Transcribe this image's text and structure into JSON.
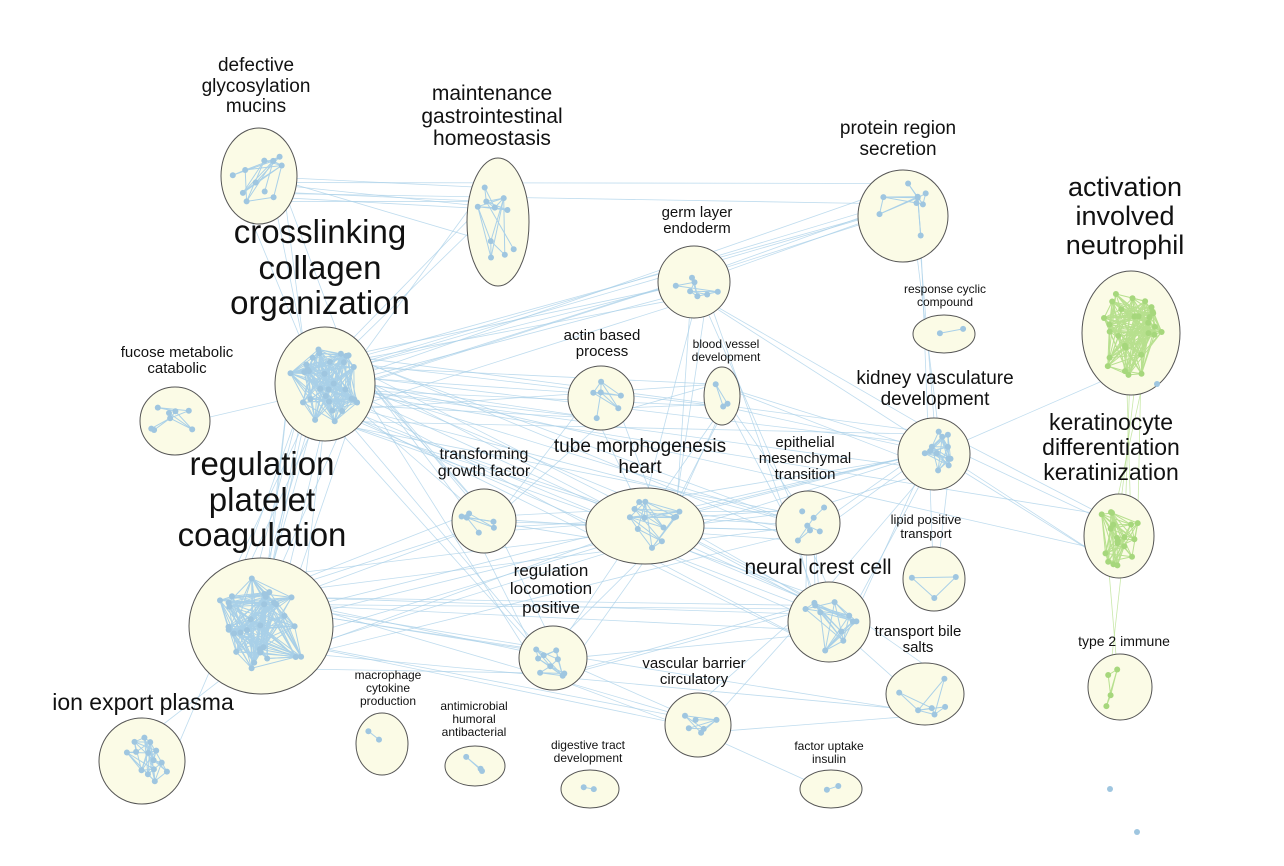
{
  "colors": {
    "blue_node": "#9fc6e0",
    "blue_edge": "#a9d0e8",
    "green_node": "#a6d77c",
    "green_edge": "#b7e08e",
    "cluster_fill": "#fbfbe6",
    "cluster_stroke": "#555555"
  },
  "clusters": [
    {
      "id": "crosslinking",
      "lines": [
        "crosslinking",
        "collagen",
        "organization"
      ],
      "color": "blue"
    },
    {
      "id": "platelet",
      "lines": [
        "regulation",
        "platelet",
        "coagulation"
      ],
      "color": "blue"
    },
    {
      "id": "mucins",
      "lines": [
        "defective",
        "glycosylation",
        "mucins"
      ],
      "color": "blue"
    },
    {
      "id": "gastro",
      "lines": [
        "maintenance",
        "gastrointestinal",
        "homeostasis"
      ],
      "color": "blue"
    },
    {
      "id": "fucose",
      "lines": [
        "fucose metabolic",
        "catabolic"
      ],
      "color": "blue"
    },
    {
      "id": "ion",
      "lines": [
        "ion export plasma"
      ],
      "color": "blue"
    },
    {
      "id": "germ",
      "lines": [
        "germ layer",
        "endoderm"
      ],
      "color": "blue"
    },
    {
      "id": "actin",
      "lines": [
        "actin based",
        "process"
      ],
      "color": "blue"
    },
    {
      "id": "bloodvessel",
      "lines": [
        "blood vessel",
        "development"
      ],
      "color": "blue"
    },
    {
      "id": "protein",
      "lines": [
        "protein region",
        "secretion"
      ],
      "color": "blue"
    },
    {
      "id": "cyclic",
      "lines": [
        "response cyclic",
        "compound"
      ],
      "color": "blue"
    },
    {
      "id": "kidney",
      "lines": [
        "kidney vasculature",
        "development"
      ],
      "color": "blue"
    },
    {
      "id": "tgf",
      "lines": [
        "transforming",
        "growth factor"
      ],
      "color": "blue"
    },
    {
      "id": "tube",
      "lines": [
        "tube morphogenesis",
        "heart"
      ],
      "color": "blue"
    },
    {
      "id": "emt",
      "lines": [
        "epithelial",
        "mesenchymal",
        "transition"
      ],
      "color": "blue"
    },
    {
      "id": "lipid",
      "lines": [
        "lipid positive",
        "transport"
      ],
      "color": "blue"
    },
    {
      "id": "neural",
      "lines": [
        "neural crest cell"
      ],
      "color": "blue"
    },
    {
      "id": "locomotion",
      "lines": [
        "regulation",
        "locomotion",
        "positive"
      ],
      "color": "blue"
    },
    {
      "id": "bile",
      "lines": [
        "transport bile",
        "salts"
      ],
      "color": "blue"
    },
    {
      "id": "vascular",
      "lines": [
        "vascular barrier",
        "circulatory"
      ],
      "color": "blue"
    },
    {
      "id": "macrophage",
      "lines": [
        "macrophage",
        "cytokine",
        "production"
      ],
      "color": "blue"
    },
    {
      "id": "antimicrobial",
      "lines": [
        "antimicrobial",
        "humoral",
        "antibacterial"
      ],
      "color": "blue"
    },
    {
      "id": "digestive",
      "lines": [
        "digestive tract",
        "development"
      ],
      "color": "blue"
    },
    {
      "id": "insulin",
      "lines": [
        "factor uptake",
        "insulin"
      ],
      "color": "blue"
    },
    {
      "id": "neutrophil",
      "lines": [
        "activation",
        "involved",
        "neutrophil"
      ],
      "color": "green"
    },
    {
      "id": "keratinocyte",
      "lines": [
        "keratinocyte",
        "differentiation",
        "keratinization"
      ],
      "color": "green"
    },
    {
      "id": "immune",
      "lines": [
        "type 2 immune"
      ],
      "color": "green"
    }
  ],
  "links": [
    [
      "crosslinking",
      "platelet",
      14
    ],
    [
      "crosslinking",
      "mucins",
      4
    ],
    [
      "crosslinking",
      "gastro",
      3
    ],
    [
      "crosslinking",
      "germ",
      6
    ],
    [
      "crosslinking",
      "protein",
      5
    ],
    [
      "crosslinking",
      "actin",
      4
    ],
    [
      "crosslinking",
      "bloodvessel",
      4
    ],
    [
      "crosslinking",
      "kidney",
      4
    ],
    [
      "crosslinking",
      "tgf",
      5
    ],
    [
      "crosslinking",
      "tube",
      5
    ],
    [
      "crosslinking",
      "emt",
      5
    ],
    [
      "crosslinking",
      "neural",
      6
    ],
    [
      "crosslinking",
      "fucose",
      1
    ],
    [
      "crosslinking",
      "locomotion",
      3
    ],
    [
      "crosslinking",
      "keratinocyte",
      2
    ],
    [
      "platelet",
      "tgf",
      3
    ],
    [
      "platelet",
      "locomotion",
      4
    ],
    [
      "platelet",
      "neural",
      4
    ],
    [
      "platelet",
      "vascular",
      3
    ],
    [
      "platelet",
      "emt",
      3
    ],
    [
      "platelet",
      "tube",
      3
    ],
    [
      "platelet",
      "bile",
      2
    ],
    [
      "platelet",
      "ion",
      2
    ],
    [
      "platelet",
      "kidney",
      2
    ],
    [
      "mucins",
      "gastro",
      6
    ],
    [
      "mucins",
      "protein",
      2
    ],
    [
      "germ",
      "tube",
      3
    ],
    [
      "germ",
      "neural",
      2
    ],
    [
      "germ",
      "protein",
      2
    ],
    [
      "germ",
      "kidney",
      2
    ],
    [
      "tube",
      "emt",
      4
    ],
    [
      "tube",
      "neural",
      4
    ],
    [
      "tube",
      "kidney",
      3
    ],
    [
      "tube",
      "tgf",
      3
    ],
    [
      "tube",
      "locomotion",
      3
    ],
    [
      "emt",
      "neural",
      4
    ],
    [
      "emt",
      "kidney",
      3
    ],
    [
      "emt",
      "tgf",
      3
    ],
    [
      "neural",
      "kidney",
      3
    ],
    [
      "neural",
      "locomotion",
      3
    ],
    [
      "neural",
      "vascular",
      2
    ],
    [
      "neural",
      "bile",
      2
    ],
    [
      "kidney",
      "keratinocyte",
      4
    ],
    [
      "kidney",
      "protein",
      2
    ],
    [
      "kidney",
      "bloodvessel",
      3
    ],
    [
      "bloodvessel",
      "tube",
      3
    ],
    [
      "bloodvessel",
      "actin",
      2
    ],
    [
      "bloodvessel",
      "emt",
      2
    ],
    [
      "actin",
      "tube",
      2
    ],
    [
      "actin",
      "tgf",
      2
    ],
    [
      "locomotion",
      "vascular",
      2
    ],
    [
      "locomotion",
      "tgf",
      2
    ],
    [
      "neutrophil",
      "keratinocyte",
      5
    ],
    [
      "keratinocyte",
      "immune",
      2
    ],
    [
      "neutrophil",
      "kidney",
      1
    ],
    [
      "protein",
      "lipid",
      1
    ],
    [
      "bile",
      "vascular",
      1
    ],
    [
      "insulin",
      "vascular",
      1
    ],
    [
      "lipid",
      "kidney",
      1
    ]
  ]
}
